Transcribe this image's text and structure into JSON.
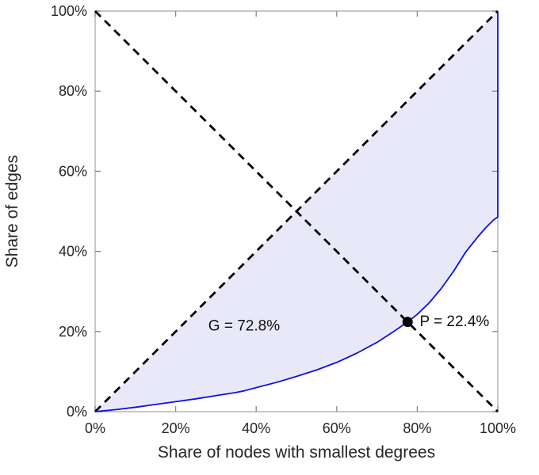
{
  "chart_data": {
    "type": "line",
    "title": "",
    "xlabel": "Share of nodes with smallest degrees",
    "ylabel": "Share of edges",
    "xlim": [
      0,
      100
    ],
    "ylim": [
      0,
      100
    ],
    "grid": false,
    "legend": false,
    "x_tick_values": [
      0,
      20,
      40,
      60,
      80,
      100
    ],
    "x_tick_labels": [
      "0%",
      "20%",
      "40%",
      "60%",
      "80%",
      "100%"
    ],
    "y_tick_values": [
      0,
      20,
      40,
      60,
      80,
      100
    ],
    "y_tick_labels": [
      "0%",
      "20%",
      "40%",
      "60%",
      "80%",
      "100%"
    ],
    "colors": {
      "curve": "#0f0fe8",
      "fill": "#e2e2f8",
      "dashed": "#000000",
      "point": "#000000",
      "axis_box": "#aaaaaa",
      "tick": "#888888"
    },
    "series": [
      {
        "name": "lorenz-curve",
        "style": "solid",
        "color": "#0f0fe8",
        "points": [
          [
            0,
            0
          ],
          [
            5,
            0.5
          ],
          [
            10,
            1.1
          ],
          [
            15,
            1.8
          ],
          [
            20,
            2.5
          ],
          [
            25,
            3.2
          ],
          [
            30,
            4.0
          ],
          [
            35,
            4.8
          ],
          [
            37,
            5.2
          ],
          [
            40,
            6.0
          ],
          [
            45,
            7.3
          ],
          [
            50,
            8.8
          ],
          [
            55,
            10.4
          ],
          [
            60,
            12.3
          ],
          [
            65,
            14.6
          ],
          [
            70,
            17.3
          ],
          [
            74,
            19.9
          ],
          [
            77.6,
            22.4
          ],
          [
            80,
            24.3
          ],
          [
            83,
            27.2
          ],
          [
            86,
            30.8
          ],
          [
            89,
            35.0
          ],
          [
            92,
            39.8
          ],
          [
            95,
            43.6
          ],
          [
            97,
            45.9
          ],
          [
            99,
            47.9
          ],
          [
            100,
            48.6
          ],
          [
            100,
            100
          ]
        ]
      },
      {
        "name": "equality-diagonal",
        "style": "dashed",
        "color": "#000000",
        "points": [
          [
            0,
            0
          ],
          [
            100,
            100
          ]
        ]
      },
      {
        "name": "anti-diagonal",
        "style": "dashed",
        "color": "#000000",
        "points": [
          [
            0,
            100
          ],
          [
            100,
            0
          ]
        ]
      }
    ],
    "fill_between": {
      "description": "area between equality diagonal and lorenz curve",
      "color": "#e2e2f8",
      "opacity": 0.8
    },
    "intersection_point": {
      "x": 77.6,
      "y": 22.4,
      "radius": 6.5,
      "color": "#000000"
    },
    "annotations": [
      {
        "name": "gini-annotation",
        "text": "G = 72.8%",
        "x": 37,
        "y": 21.3,
        "anchor": "middle"
      },
      {
        "name": "p-annotation",
        "text": "P = 22.4%",
        "x": 80.6,
        "y": 22.4,
        "anchor": "start"
      }
    ]
  }
}
